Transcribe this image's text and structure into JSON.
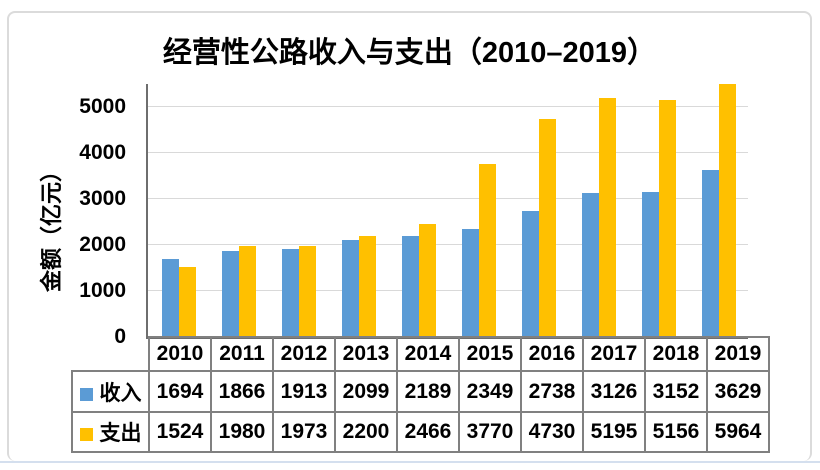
{
  "title": "经营性公路收入与支出（2010–2019）",
  "chart_data": {
    "type": "bar",
    "title": "经营性公路收入与支出（2010–2019）",
    "xlabel": "",
    "ylabel": "金额（亿元）",
    "categories": [
      "2010",
      "2011",
      "2012",
      "2013",
      "2014",
      "2015",
      "2016",
      "2017",
      "2018",
      "2019"
    ],
    "series": [
      {
        "name": "收入",
        "color": "#5B9BD5",
        "values": [
          1694,
          1866,
          1913,
          2099,
          2189,
          2349,
          2738,
          3126,
          3152,
          3629
        ]
      },
      {
        "name": "支出",
        "color": "#FFC000",
        "values": [
          1524,
          1980,
          1973,
          2200,
          2466,
          3770,
          4730,
          5195,
          5156,
          5964
        ]
      }
    ],
    "ylim": [
      0,
      5500
    ],
    "yticks": [
      0,
      1000,
      2000,
      3000,
      4000,
      5000
    ],
    "grid": true,
    "legend_position": "table-left-keys",
    "colors": {
      "income_bar": "#5B9BD5",
      "expense_bar": "#FFC000",
      "gridline": "#D9D9D9",
      "axis_line": "#6E6E6E",
      "table_border": "#808080",
      "frame_border": "#DBDBDB",
      "text": "#000000"
    }
  }
}
